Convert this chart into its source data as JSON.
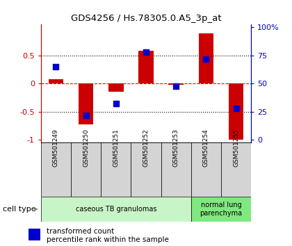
{
  "title": "GDS4256 / Hs.78305.0.A5_3p_at",
  "samples": [
    "GSM501249",
    "GSM501250",
    "GSM501251",
    "GSM501252",
    "GSM501253",
    "GSM501254",
    "GSM501255"
  ],
  "transformed_count": [
    0.08,
    -0.72,
    -0.15,
    0.58,
    -0.02,
    0.9,
    -1.0
  ],
  "percentile_rank_pct": [
    65,
    22,
    32,
    78,
    48,
    72,
    28
  ],
  "cell_types": [
    {
      "label": "caseous TB granulomas",
      "samples": [
        0,
        1,
        2,
        3,
        4
      ],
      "color": "#c8f5c8"
    },
    {
      "label": "normal lung\nparenchyma",
      "samples": [
        5,
        6
      ],
      "color": "#80e880"
    }
  ],
  "ylim": [
    -1.05,
    1.05
  ],
  "hlines_dotted": [
    0.5,
    -0.5
  ],
  "red_hline_y": 0,
  "bar_color": "#cc0000",
  "dot_color": "#0000cc",
  "bar_width": 0.5,
  "dot_size": 35,
  "legend_items": [
    {
      "label": "transformed count",
      "color": "#cc0000"
    },
    {
      "label": "percentile rank within the sample",
      "color": "#0000cc"
    }
  ],
  "cell_type_label": "cell type",
  "background_color": "#ffffff",
  "tick_color_left": "#cc0000",
  "tick_color_right": "#0000cc",
  "sample_box_color": "#d4d4d4",
  "yticks_left": [
    -1.0,
    -0.5,
    0.0,
    0.5
  ],
  "ytick_labels_left": [
    "-1",
    "-0.5",
    "0",
    "0.5"
  ],
  "right_pcts": [
    0,
    25,
    50,
    75,
    100
  ],
  "right_labels": [
    "0",
    "25",
    "50",
    "75",
    "100%"
  ]
}
